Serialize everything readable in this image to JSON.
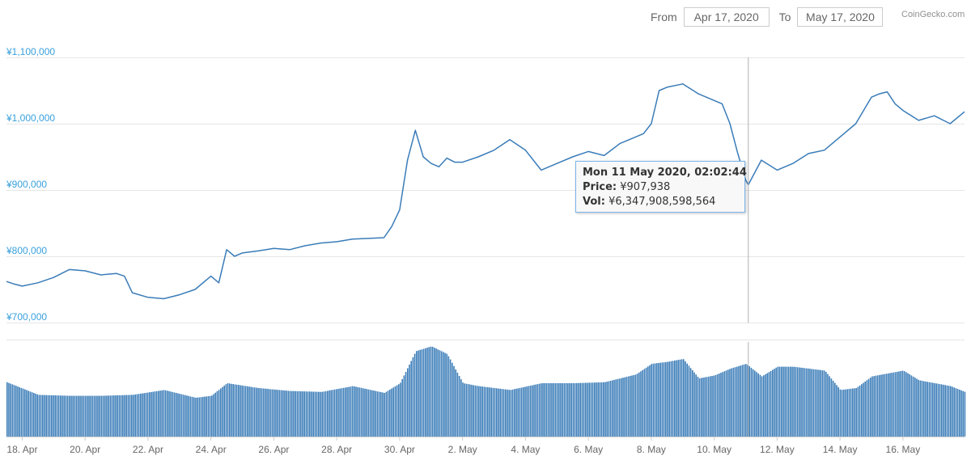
{
  "controls": {
    "from_label": "From",
    "from_value": "Apr 17, 2020",
    "to_label": "To",
    "to_value": "May 17, 2020"
  },
  "credit": "CoinGecko.com",
  "tooltip": {
    "title": "Mon 11 May 2020, 02:02:44",
    "price_label": "Price:",
    "price_value": "¥907,938",
    "vol_label": "Vol:",
    "vol_value": "¥6,347,908,598,564"
  },
  "colors": {
    "line": "#3a7cb8",
    "volume": "#3a7cb8",
    "axis_text": "#38a0dc",
    "grid": "#e6e6e6",
    "crosshair": "#b0b0b0"
  },
  "chart_data": [
    {
      "type": "line",
      "y_ticks": [
        "¥1,100,000",
        "¥1,000,000",
        "¥900,000",
        "¥800,000",
        "¥700,000"
      ],
      "ylim": [
        700000,
        1100000
      ],
      "xlim": [
        "2020-04-17T12:00",
        "2020-05-17T23:00"
      ],
      "x_ticks": [
        "18. Apr",
        "20. Apr",
        "22. Apr",
        "24. Apr",
        "26. Apr",
        "28. Apr",
        "30. Apr",
        "2. May",
        "4. May",
        "6. May",
        "8. May",
        "10. May",
        "12. May",
        "14. May",
        "16. May"
      ],
      "grid": true,
      "series": [
        {
          "x": [
            "2020-04-17T12:00",
            "2020-04-17T18:00",
            "2020-04-18T00:00",
            "2020-04-18T12:00",
            "2020-04-19T00:00",
            "2020-04-19T12:00",
            "2020-04-20T00:00",
            "2020-04-20T12:00",
            "2020-04-21T00:00",
            "2020-04-21T06:00",
            "2020-04-21T12:00",
            "2020-04-22T00:00",
            "2020-04-22T12:00",
            "2020-04-23T00:00",
            "2020-04-23T12:00",
            "2020-04-24T00:00",
            "2020-04-24T06:00",
            "2020-04-24T12:00",
            "2020-04-24T18:00",
            "2020-04-25T00:00",
            "2020-04-25T12:00",
            "2020-04-26T00:00",
            "2020-04-26T12:00",
            "2020-04-27T00:00",
            "2020-04-27T12:00",
            "2020-04-28T00:00",
            "2020-04-28T12:00",
            "2020-04-29T00:00",
            "2020-04-29T12:00",
            "2020-04-29T18:00",
            "2020-04-30T00:00",
            "2020-04-30T06:00",
            "2020-04-30T12:00",
            "2020-04-30T18:00",
            "2020-05-01T00:00",
            "2020-05-01T06:00",
            "2020-05-01T12:00",
            "2020-05-01T18:00",
            "2020-05-02T00:00",
            "2020-05-02T12:00",
            "2020-05-03T00:00",
            "2020-05-03T12:00",
            "2020-05-04T00:00",
            "2020-05-04T12:00",
            "2020-05-05T00:00",
            "2020-05-05T12:00",
            "2020-05-06T00:00",
            "2020-05-06T12:00",
            "2020-05-07T00:00",
            "2020-05-07T12:00",
            "2020-05-07T18:00",
            "2020-05-08T00:00",
            "2020-05-08T06:00",
            "2020-05-08T12:00",
            "2020-05-09T00:00",
            "2020-05-09T12:00",
            "2020-05-10T00:00",
            "2020-05-10T06:00",
            "2020-05-10T12:00",
            "2020-05-10T18:00",
            "2020-05-11T00:00",
            "2020-05-11T02:02",
            "2020-05-11T12:00",
            "2020-05-12T00:00",
            "2020-05-12T12:00",
            "2020-05-13T00:00",
            "2020-05-13T12:00",
            "2020-05-14T00:00",
            "2020-05-14T12:00",
            "2020-05-15T00:00",
            "2020-05-15T06:00",
            "2020-05-15T12:00",
            "2020-05-15T18:00",
            "2020-05-16T00:00",
            "2020-05-16T12:00",
            "2020-05-17T00:00",
            "2020-05-17T12:00",
            "2020-05-17T23:00"
          ],
          "y": [
            762000,
            758000,
            755000,
            760000,
            768000,
            780000,
            778000,
            772000,
            774000,
            770000,
            745000,
            738000,
            736000,
            742000,
            750000,
            770000,
            760000,
            810000,
            800000,
            805000,
            808000,
            812000,
            810000,
            816000,
            820000,
            822000,
            826000,
            827000,
            828000,
            845000,
            870000,
            945000,
            990000,
            950000,
            940000,
            935000,
            948000,
            942000,
            942000,
            950000,
            960000,
            976000,
            960000,
            930000,
            940000,
            950000,
            958000,
            952000,
            970000,
            980000,
            985000,
            1000000,
            1050000,
            1055000,
            1060000,
            1045000,
            1035000,
            1030000,
            1000000,
            955000,
            915000,
            907938,
            945000,
            930000,
            940000,
            955000,
            960000,
            980000,
            1000000,
            1040000,
            1045000,
            1048000,
            1030000,
            1020000,
            1005000,
            1012000,
            1000000,
            1018000
          ]
        }
      ]
    },
    {
      "type": "bar",
      "title": "volume",
      "x": [
        "2020-04-17T12:00",
        "2020-04-18T12:00",
        "2020-04-19T12:00",
        "2020-04-20T12:00",
        "2020-04-21T12:00",
        "2020-04-22T12:00",
        "2020-04-23T12:00",
        "2020-04-24T00:00",
        "2020-04-24T12:00",
        "2020-04-25T12:00",
        "2020-04-26T12:00",
        "2020-04-27T12:00",
        "2020-04-28T12:00",
        "2020-04-29T12:00",
        "2020-04-30T00:00",
        "2020-04-30T12:00",
        "2020-05-01T00:00",
        "2020-05-01T12:00",
        "2020-05-02T00:00",
        "2020-05-02T12:00",
        "2020-05-03T12:00",
        "2020-05-04T12:00",
        "2020-05-05T12:00",
        "2020-05-06T12:00",
        "2020-05-07T12:00",
        "2020-05-08T00:00",
        "2020-05-08T12:00",
        "2020-05-09T00:00",
        "2020-05-09T12:00",
        "2020-05-10T00:00",
        "2020-05-10T12:00",
        "2020-05-11T00:00",
        "2020-05-11T12:00",
        "2020-05-12T00:00",
        "2020-05-12T12:00",
        "2020-05-13T12:00",
        "2020-05-14T00:00",
        "2020-05-14T12:00",
        "2020-05-15T00:00",
        "2020-05-15T12:00",
        "2020-05-16T00:00",
        "2020-05-16T12:00",
        "2020-05-17T12:00",
        "2020-05-17T23:00"
      ],
      "values": [
        0.56,
        0.43,
        0.42,
        0.42,
        0.43,
        0.48,
        0.4,
        0.42,
        0.55,
        0.5,
        0.47,
        0.46,
        0.52,
        0.45,
        0.55,
        0.88,
        0.93,
        0.85,
        0.55,
        0.52,
        0.48,
        0.55,
        0.55,
        0.56,
        0.64,
        0.75,
        0.77,
        0.8,
        0.6,
        0.63,
        0.7,
        0.75,
        0.62,
        0.72,
        0.72,
        0.68,
        0.48,
        0.5,
        0.62,
        0.65,
        0.68,
        0.58,
        0.52,
        0.46
      ]
    }
  ]
}
